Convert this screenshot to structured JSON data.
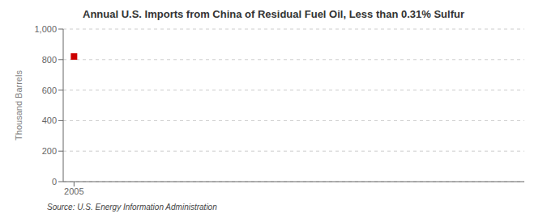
{
  "chart_data": {
    "type": "scatter",
    "title": "Annual U.S. Imports from China of Residual Fuel Oil, Less than 0.31% Sulfur",
    "ylabel": "Thousand Barrels",
    "annotations": [
      "Source: U.S. Energy Information Administration"
    ],
    "x": [
      2005
    ],
    "values": [
      820
    ],
    "color": "#cc0000",
    "marker": "square",
    "xlim": [
      2004.4,
      2030
    ],
    "xticks": [
      2005
    ],
    "ylim": [
      0,
      1000
    ],
    "yticks": [
      0,
      200,
      400,
      600,
      800,
      {
        "value": 1000,
        "label": "1,000"
      }
    ],
    "grid": "y"
  }
}
